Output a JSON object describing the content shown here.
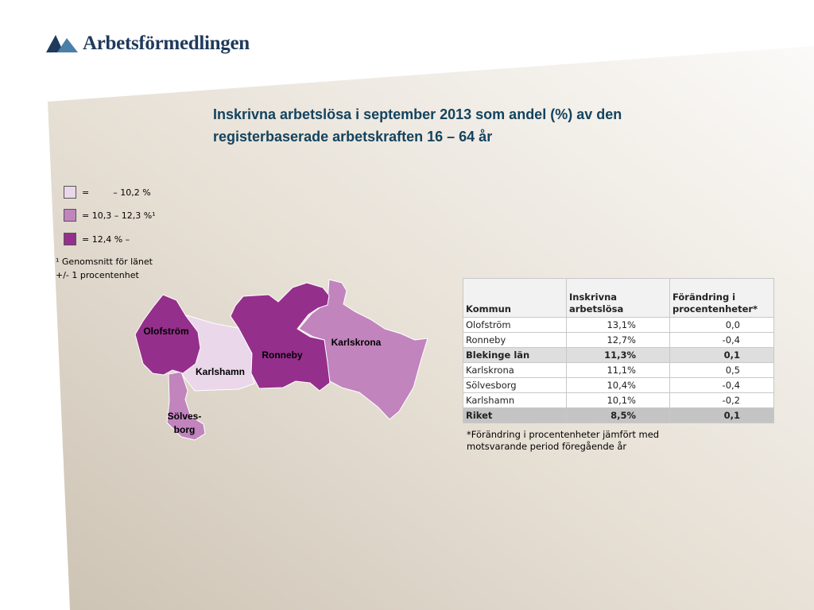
{
  "logo": {
    "text": "Arbetsförmedlingen",
    "brand_color": "#1f3a5c"
  },
  "title": "Inskrivna arbetslösa i september 2013 som andel (%) av den registerbaserade arbetskraften 16 – 64 år",
  "legend": [
    {
      "prefix": "=",
      "text": "– 10,2 %",
      "color": "#ead7ea"
    },
    {
      "prefix": "",
      "text": "= 10,3 – 12,3 %¹",
      "color": "#c184bd"
    },
    {
      "prefix": "",
      "text": "= 12,4 % –",
      "color": "#952f8c"
    }
  ],
  "note": {
    "line1": "¹ Genomsnitt för länet",
    "line2": "+/- 1 procentenhet"
  },
  "map": {
    "regions": [
      {
        "name": "Olofström",
        "class": "high",
        "color": "#952f8c"
      },
      {
        "name": "Karlshamn",
        "class": "low",
        "color": "#ead7ea"
      },
      {
        "name": "Ronneby",
        "class": "high",
        "color": "#952f8c"
      },
      {
        "name": "Karlskrona",
        "class": "mid",
        "color": "#c184bd"
      },
      {
        "name": "Sölves-",
        "name2": "borg",
        "class": "mid",
        "color": "#c184bd"
      }
    ]
  },
  "table": {
    "headers": [
      "Kommun",
      "Inskrivna arbetslösa",
      "Förändring i procentenheter*"
    ],
    "header_lines": {
      "col2": [
        "Inskrivna",
        "arbetslösa"
      ],
      "col3": [
        "Förändring i",
        "procentenheter*"
      ]
    },
    "rows": [
      {
        "kommun": "Olofström",
        "andel": "13,1%",
        "change": "0,0",
        "style": "plain"
      },
      {
        "kommun": "Ronneby",
        "andel": "12,7%",
        "change": "-0,4",
        "style": "plain"
      },
      {
        "kommun": "Blekinge län",
        "andel": "11,3%",
        "change": "0,1",
        "style": "bold"
      },
      {
        "kommun": "Karlskrona",
        "andel": "11,1%",
        "change": "0,5",
        "style": "plain"
      },
      {
        "kommun": "Sölvesborg",
        "andel": "10,4%",
        "change": "-0,4",
        "style": "plain"
      },
      {
        "kommun": "Karlshamn",
        "andel": "10,1%",
        "change": "-0,2",
        "style": "plain"
      },
      {
        "kommun": "Riket",
        "andel": "8,5%",
        "change": "0,1",
        "style": "total"
      }
    ]
  },
  "footnote": {
    "line1": "*Förändring i procentenheter jämfört med",
    "line2": "motsvarande period föregående år"
  }
}
